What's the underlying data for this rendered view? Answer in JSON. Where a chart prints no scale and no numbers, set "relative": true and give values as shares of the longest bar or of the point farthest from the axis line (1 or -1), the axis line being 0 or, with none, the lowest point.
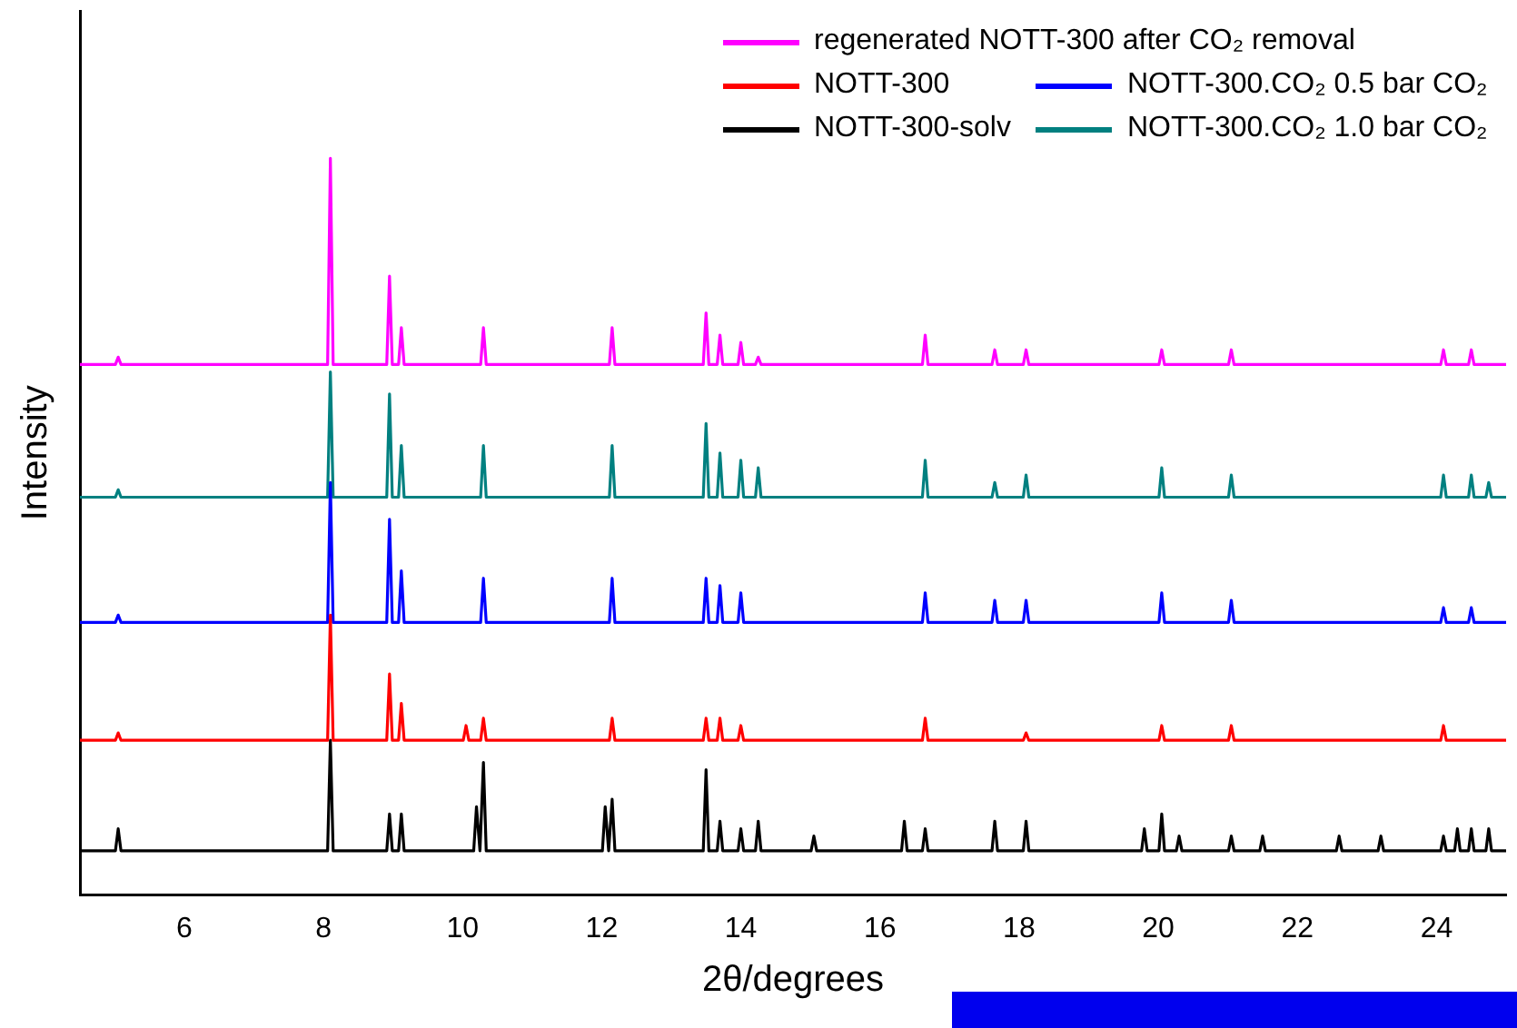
{
  "chart_data": {
    "type": "line",
    "relative": true,
    "xlabel": "2θ/degrees",
    "ylabel": "Intensity",
    "xlim": [
      4.5,
      25
    ],
    "xticks": [
      6,
      8,
      10,
      12,
      14,
      16,
      18,
      20,
      22,
      24
    ],
    "grid": false,
    "legend": "top right",
    "marker": "none",
    "line_style": "solid",
    "series": [
      {
        "name": "regenerated NOTT-300 after CO₂ removal",
        "color": "#ff00ff",
        "x": [
          4.5,
          5.01,
          5.05,
          5.09,
          8.06,
          8.1,
          8.14,
          8.91,
          8.95,
          8.99,
          9.08,
          9.12,
          9.16,
          10.26,
          10.3,
          10.34,
          12.11,
          12.15,
          12.19,
          13.46,
          13.5,
          13.54,
          13.66,
          13.7,
          13.74,
          13.96,
          14.0,
          14.04,
          14.21,
          14.25,
          14.29,
          16.61,
          16.65,
          16.69,
          17.61,
          17.65,
          17.69,
          18.06,
          18.1,
          18.14,
          20.01,
          20.05,
          20.09,
          21.01,
          21.05,
          21.09,
          24.06,
          24.1,
          24.14,
          24.46,
          24.5,
          24.54,
          25
        ],
        "values": [
          0.72,
          0.72,
          0.73,
          0.72,
          0.72,
          1,
          0.72,
          0.72,
          0.84,
          0.72,
          0.72,
          0.77,
          0.72,
          0.72,
          0.77,
          0.72,
          0.72,
          0.77,
          0.72,
          0.72,
          0.79,
          0.72,
          0.72,
          0.76,
          0.72,
          0.72,
          0.75,
          0.72,
          0.72,
          0.73,
          0.72,
          0.72,
          0.76,
          0.72,
          0.72,
          0.74,
          0.72,
          0.72,
          0.74,
          0.72,
          0.72,
          0.74,
          0.72,
          0.72,
          0.74,
          0.72,
          0.72,
          0.74,
          0.72,
          0.72,
          0.74,
          0.72,
          0.72
        ]
      },
      {
        "name": "NOTT-300",
        "color": "#ff0000",
        "x": [
          4.5,
          5.01,
          5.05,
          5.09,
          8.06,
          8.1,
          8.14,
          8.91,
          8.95,
          8.99,
          9.08,
          9.12,
          9.16,
          10.01,
          10.05,
          10.09,
          10.26,
          10.3,
          10.34,
          12.11,
          12.15,
          12.19,
          13.46,
          13.5,
          13.54,
          13.66,
          13.7,
          13.74,
          13.96,
          14.0,
          14.04,
          16.61,
          16.65,
          16.69,
          18.06,
          18.1,
          18.14,
          20.01,
          20.05,
          20.09,
          21.01,
          21.05,
          21.09,
          24.06,
          24.1,
          24.14,
          25
        ],
        "values": [
          0.21,
          0.21,
          0.22,
          0.21,
          0.21,
          0.38,
          0.21,
          0.21,
          0.3,
          0.21,
          0.21,
          0.26,
          0.21,
          0.21,
          0.23,
          0.21,
          0.21,
          0.24,
          0.21,
          0.21,
          0.24,
          0.21,
          0.21,
          0.24,
          0.21,
          0.21,
          0.24,
          0.21,
          0.21,
          0.23,
          0.21,
          0.21,
          0.24,
          0.21,
          0.21,
          0.22,
          0.21,
          0.21,
          0.23,
          0.21,
          0.21,
          0.23,
          0.21,
          0.21,
          0.23,
          0.21,
          0.21
        ]
      },
      {
        "name": "NOTT-300.CO₂ 0.5 bar CO₂",
        "color": "#0000ff",
        "x": [
          4.5,
          5.01,
          5.05,
          5.09,
          8.06,
          8.1,
          8.14,
          8.91,
          8.95,
          8.99,
          9.08,
          9.12,
          9.16,
          10.26,
          10.3,
          10.34,
          12.11,
          12.15,
          12.19,
          13.46,
          13.5,
          13.54,
          13.66,
          13.7,
          13.74,
          13.96,
          14.0,
          14.04,
          16.61,
          16.65,
          16.69,
          17.61,
          17.65,
          17.69,
          18.06,
          18.1,
          18.14,
          20.01,
          20.05,
          20.09,
          21.01,
          21.05,
          21.09,
          24.06,
          24.1,
          24.14,
          24.46,
          24.5,
          24.54,
          25
        ],
        "values": [
          0.37,
          0.37,
          0.38,
          0.37,
          0.37,
          0.56,
          0.37,
          0.37,
          0.51,
          0.37,
          0.37,
          0.44,
          0.37,
          0.37,
          0.43,
          0.37,
          0.37,
          0.43,
          0.37,
          0.37,
          0.43,
          0.37,
          0.37,
          0.42,
          0.37,
          0.37,
          0.41,
          0.37,
          0.37,
          0.41,
          0.37,
          0.37,
          0.4,
          0.37,
          0.37,
          0.4,
          0.37,
          0.37,
          0.41,
          0.37,
          0.37,
          0.4,
          0.37,
          0.37,
          0.39,
          0.37,
          0.37,
          0.39,
          0.37,
          0.37
        ]
      },
      {
        "name": "NOTT-300-solv",
        "color": "#000000",
        "x": [
          4.5,
          5.01,
          5.05,
          5.09,
          8.06,
          8.1,
          8.14,
          8.91,
          8.95,
          8.99,
          9.08,
          9.12,
          9.16,
          10.16,
          10.2,
          10.25,
          10.3,
          10.34,
          12.01,
          12.05,
          12.1,
          12.15,
          12.19,
          13.46,
          13.5,
          13.54,
          13.66,
          13.7,
          13.74,
          13.96,
          14.0,
          14.04,
          14.21,
          14.25,
          14.29,
          15.01,
          15.05,
          15.09,
          16.31,
          16.35,
          16.39,
          16.61,
          16.65,
          16.69,
          17.61,
          17.65,
          17.69,
          18.06,
          18.1,
          18.14,
          19.76,
          19.8,
          19.84,
          20.01,
          20.05,
          20.09,
          20.26,
          20.3,
          20.34,
          21.01,
          21.05,
          21.09,
          21.46,
          21.5,
          21.54,
          22.56,
          22.6,
          22.64,
          23.16,
          23.2,
          23.24,
          24.06,
          24.1,
          24.14,
          24.26,
          24.3,
          24.34,
          24.46,
          24.5,
          24.54,
          24.71,
          24.75,
          24.79,
          25
        ],
        "values": [
          0.06,
          0.06,
          0.09,
          0.06,
          0.06,
          0.21,
          0.06,
          0.06,
          0.11,
          0.06,
          0.06,
          0.11,
          0.06,
          0.06,
          0.12,
          0.06,
          0.18,
          0.06,
          0.06,
          0.12,
          0.06,
          0.13,
          0.06,
          0.06,
          0.17,
          0.06,
          0.06,
          0.1,
          0.06,
          0.06,
          0.09,
          0.06,
          0.06,
          0.1,
          0.06,
          0.06,
          0.08,
          0.06,
          0.06,
          0.1,
          0.06,
          0.06,
          0.09,
          0.06,
          0.06,
          0.1,
          0.06,
          0.06,
          0.1,
          0.06,
          0.06,
          0.09,
          0.06,
          0.06,
          0.11,
          0.06,
          0.06,
          0.08,
          0.06,
          0.06,
          0.08,
          0.06,
          0.06,
          0.08,
          0.06,
          0.06,
          0.08,
          0.06,
          0.06,
          0.08,
          0.06,
          0.06,
          0.08,
          0.06,
          0.06,
          0.09,
          0.06,
          0.06,
          0.09,
          0.06,
          0.06,
          0.09,
          0.06,
          0.06
        ]
      },
      {
        "name": "NOTT-300.CO₂ 1.0 bar CO₂",
        "color": "#008080",
        "x": [
          4.5,
          5.01,
          5.05,
          5.09,
          8.06,
          8.1,
          8.14,
          8.91,
          8.95,
          8.99,
          9.08,
          9.12,
          9.16,
          10.26,
          10.3,
          10.34,
          12.11,
          12.15,
          12.19,
          13.46,
          13.5,
          13.54,
          13.66,
          13.7,
          13.74,
          13.96,
          14.0,
          14.04,
          14.21,
          14.25,
          14.29,
          16.61,
          16.65,
          16.69,
          17.61,
          17.65,
          17.69,
          18.06,
          18.1,
          18.14,
          20.01,
          20.05,
          20.09,
          21.01,
          21.05,
          21.09,
          24.06,
          24.1,
          24.14,
          24.46,
          24.5,
          24.54,
          24.71,
          24.75,
          24.79,
          25
        ],
        "values": [
          0.54,
          0.54,
          0.55,
          0.54,
          0.54,
          0.71,
          0.54,
          0.54,
          0.68,
          0.54,
          0.54,
          0.61,
          0.54,
          0.54,
          0.61,
          0.54,
          0.54,
          0.61,
          0.54,
          0.54,
          0.64,
          0.54,
          0.54,
          0.6,
          0.54,
          0.54,
          0.59,
          0.54,
          0.54,
          0.58,
          0.54,
          0.54,
          0.59,
          0.54,
          0.54,
          0.56,
          0.54,
          0.54,
          0.57,
          0.54,
          0.54,
          0.58,
          0.54,
          0.54,
          0.57,
          0.54,
          0.54,
          0.57,
          0.54,
          0.54,
          0.57,
          0.54,
          0.54,
          0.56,
          0.54,
          0.54
        ]
      }
    ]
  }
}
